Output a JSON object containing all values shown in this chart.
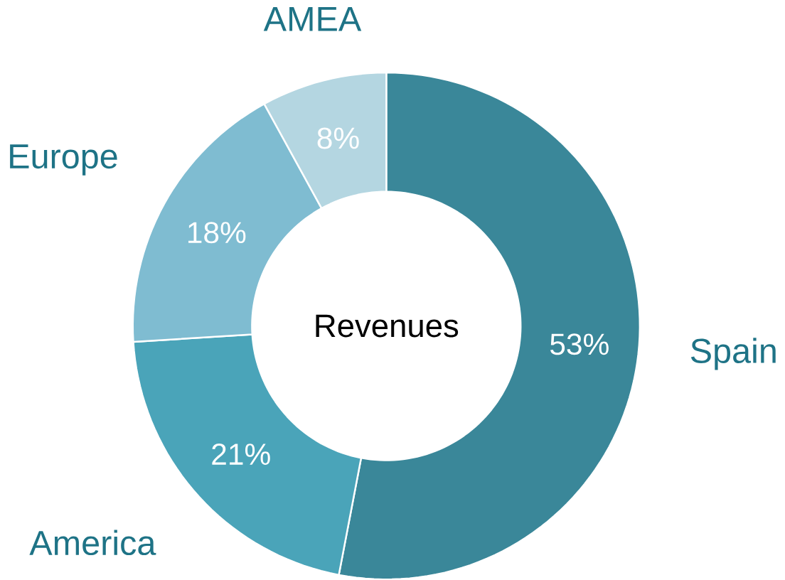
{
  "chart_data": {
    "type": "donut",
    "title": "Revenues",
    "categories": [
      "Spain",
      "America",
      "Europe",
      "AMEA"
    ],
    "values": [
      53,
      21,
      18,
      8
    ],
    "value_labels": [
      "53%",
      "21%",
      "18%",
      "8%"
    ],
    "colors": [
      "#3a8799",
      "#4aa4b9",
      "#7fbcd1",
      "#b4d6e1"
    ]
  }
}
